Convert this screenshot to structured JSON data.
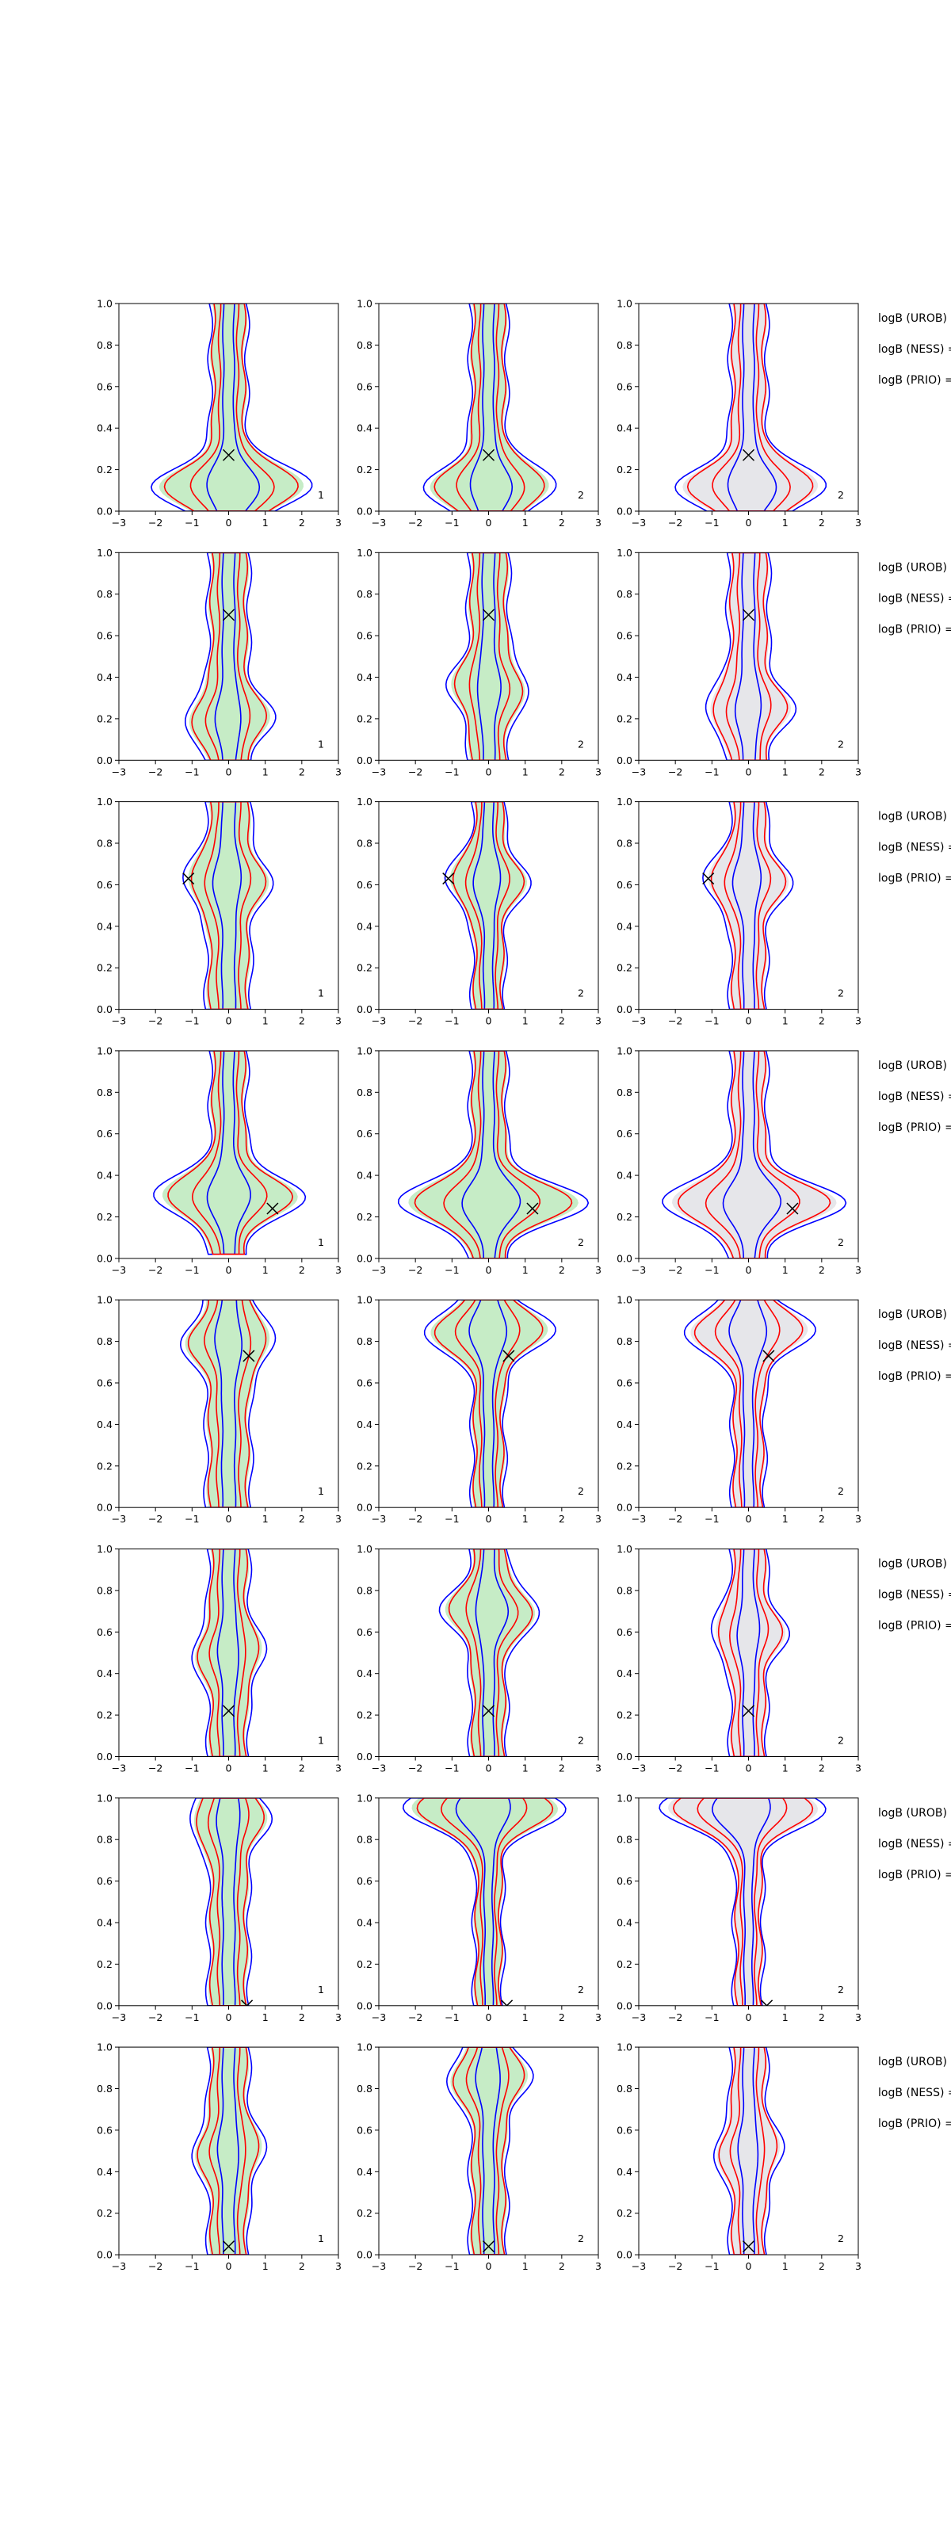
{
  "chart_data": {
    "type": "contour-grid",
    "layout": {
      "rows": 8,
      "cols": 3
    },
    "axes": {
      "xlim": [
        -3,
        3
      ],
      "ylim": [
        0,
        1
      ],
      "xticks": [
        -3,
        -2,
        -1,
        0,
        1,
        2,
        3
      ],
      "yticks": [
        0.0,
        0.2,
        0.4,
        0.6,
        0.8,
        1.0
      ],
      "xtick_labels": [
        "−3",
        "−2",
        "−1",
        "0",
        "1",
        "2",
        "3"
      ],
      "ytick_labels": [
        "0.0",
        "0.2",
        "0.4",
        "0.6",
        "0.8",
        "1.0"
      ]
    },
    "colors": {
      "blue_contour": "#0000ff",
      "red_contour": "#ff0000",
      "green_fill": "#c6ecc6",
      "gray_fill": "#e6e6ea",
      "marker": "#000000"
    },
    "column_fill": [
      "green",
      "green",
      "gray"
    ],
    "column_labels": [
      "1",
      "2",
      "2"
    ],
    "side_labels": [
      "logB (UROB) =",
      "logB (NESS) =",
      "logB (PRIO) ="
    ],
    "rows": [
      {
        "marker": {
          "x": 0.0,
          "y": 0.27
        },
        "shapes": [
          {
            "cx": 0.0,
            "y0": 0.0,
            "y1": 1.0,
            "core": 0.45,
            "bulge": {
              "y": 0.12,
              "w": 1.4,
              "skew": 0.25
            }
          },
          {
            "cx": 0.0,
            "y0": 0.0,
            "y1": 1.0,
            "core": 0.45,
            "bulge": {
              "y": 0.12,
              "w": 1.1,
              "skew": 0.15
            }
          },
          {
            "cx": 0.0,
            "y0": 0.0,
            "y1": 1.0,
            "core": 0.45,
            "bulge": {
              "y": 0.12,
              "w": 1.3,
              "skew": 0.2
            }
          }
        ]
      },
      {
        "marker": {
          "x": 0.0,
          "y": 0.7
        },
        "shapes": [
          {
            "cx": 0.0,
            "y0": 0.0,
            "y1": 1.0,
            "core": 0.5,
            "bulge": {
              "y": 0.2,
              "w": 0.6,
              "skew": 0.0
            }
          },
          {
            "cx": 0.0,
            "y0": 0.0,
            "y1": 1.0,
            "core": 0.5,
            "bulge": {
              "y": 0.35,
              "w": 0.5,
              "skew": 0.0
            }
          },
          {
            "cx": 0.0,
            "y0": 0.0,
            "y1": 1.0,
            "core": 0.5,
            "bulge": {
              "y": 0.25,
              "w": 0.6,
              "skew": 0.0
            }
          }
        ]
      },
      {
        "marker": {
          "x": -1.1,
          "y": 0.63
        },
        "shapes": [
          {
            "cx": 0.0,
            "y0": 0.0,
            "y1": 1.0,
            "core": 0.55,
            "bulge": {
              "y": 0.62,
              "w": 0.5,
              "skew": -0.1
            }
          },
          {
            "cx": 0.0,
            "y0": 0.0,
            "y1": 1.0,
            "core": 0.4,
            "bulge": {
              "y": 0.62,
              "w": 0.6,
              "skew": -0.1
            }
          },
          {
            "cx": 0.0,
            "y0": 0.0,
            "y1": 1.0,
            "core": 0.45,
            "bulge": {
              "y": 0.62,
              "w": 0.6,
              "skew": -0.1
            }
          }
        ]
      },
      {
        "marker": {
          "x": 1.2,
          "y": 0.24
        },
        "shapes": [
          {
            "cx": 0.0,
            "y0": 0.02,
            "y1": 1.0,
            "core": 0.45,
            "bulge": {
              "y": 0.3,
              "w": 1.4,
              "skew": 0.0
            }
          },
          {
            "cx": 0.0,
            "y0": 0.0,
            "y1": 1.0,
            "core": 0.45,
            "bulge": {
              "y": 0.27,
              "w": 1.8,
              "skew": 0.15
            }
          },
          {
            "cx": 0.0,
            "y0": 0.0,
            "y1": 1.0,
            "core": 0.45,
            "bulge": {
              "y": 0.27,
              "w": 1.7,
              "skew": 0.2
            }
          }
        ]
      },
      {
        "marker": {
          "x": 0.55,
          "y": 0.73
        },
        "shapes": [
          {
            "cx": 0.0,
            "y0": 0.0,
            "y1": 1.0,
            "core": 0.55,
            "bulge": {
              "y": 0.8,
              "w": 0.6,
              "skew": 0.0
            }
          },
          {
            "cx": 0.0,
            "y0": 0.0,
            "y1": 1.0,
            "core": 0.4,
            "bulge": {
              "y": 0.85,
              "w": 1.2,
              "skew": 0.0
            }
          },
          {
            "cx": 0.0,
            "y0": 0.0,
            "y1": 1.0,
            "core": 0.4,
            "bulge": {
              "y": 0.85,
              "w": 1.2,
              "skew": 0.0
            }
          }
        ]
      },
      {
        "marker": {
          "x": 0.0,
          "y": 0.22
        },
        "shapes": [
          {
            "cx": 0.0,
            "y0": 0.0,
            "y1": 1.0,
            "core": 0.5,
            "bulge": {
              "y": 0.5,
              "w": 0.4,
              "skew": 0.0
            }
          },
          {
            "cx": 0.0,
            "y0": 0.0,
            "y1": 1.0,
            "core": 0.45,
            "bulge": {
              "y": 0.7,
              "w": 0.7,
              "skew": 0.15
            }
          },
          {
            "cx": 0.0,
            "y0": 0.0,
            "y1": 1.0,
            "core": 0.45,
            "bulge": {
              "y": 0.6,
              "w": 0.5,
              "skew": 0.0
            }
          }
        ]
      },
      {
        "marker": {
          "x": 0.5,
          "y": 0.0
        },
        "shapes": [
          {
            "cx": 0.0,
            "y0": 0.0,
            "y1": 1.0,
            "core": 0.5,
            "bulge": {
              "y": 0.9,
              "w": 0.5,
              "skew": 0.0
            }
          },
          {
            "cx": 0.0,
            "y0": 0.0,
            "y1": 1.0,
            "core": 0.35,
            "bulge": {
              "y": 0.95,
              "w": 1.5,
              "skew": -0.3
            }
          },
          {
            "cx": 0.0,
            "y0": 0.0,
            "y1": 1.0,
            "core": 0.35,
            "bulge": {
              "y": 0.95,
              "w": 1.5,
              "skew": -0.4
            }
          }
        ]
      },
      {
        "marker": {
          "x": 0.0,
          "y": 0.04
        },
        "shapes": [
          {
            "cx": 0.0,
            "y0": 0.0,
            "y1": 1.0,
            "core": 0.5,
            "bulge": {
              "y": 0.5,
              "w": 0.4,
              "skew": 0.0
            }
          },
          {
            "cx": 0.0,
            "y0": 0.0,
            "y1": 1.0,
            "core": 0.45,
            "bulge": {
              "y": 0.85,
              "w": 0.6,
              "skew": 0.0
            }
          },
          {
            "cx": 0.0,
            "y0": 0.0,
            "y1": 1.0,
            "core": 0.45,
            "bulge": {
              "y": 0.5,
              "w": 0.4,
              "skew": 0.0
            }
          }
        ]
      }
    ]
  }
}
